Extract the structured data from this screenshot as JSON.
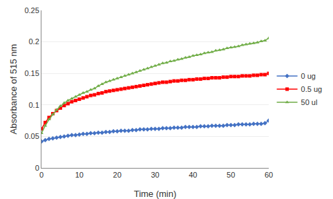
{
  "chart_data": {
    "type": "line",
    "xlabel": "Time (min)",
    "ylabel": "Absorbance of 515 nm",
    "x": [
      0,
      1,
      2,
      3,
      4,
      5,
      6,
      7,
      8,
      9,
      10,
      11,
      12,
      13,
      14,
      15,
      16,
      17,
      18,
      19,
      20,
      21,
      22,
      23,
      24,
      25,
      26,
      27,
      28,
      29,
      30,
      31,
      32,
      33,
      34,
      35,
      36,
      37,
      38,
      39,
      40,
      41,
      42,
      43,
      44,
      45,
      46,
      47,
      48,
      49,
      50,
      51,
      52,
      53,
      54,
      55,
      56,
      57,
      58,
      59,
      60
    ],
    "xlim": [
      0,
      60
    ],
    "xticks": [
      0,
      10,
      20,
      30,
      40,
      50,
      60
    ],
    "ylim": [
      0,
      0.25
    ],
    "yticks": [
      0,
      0.05,
      0.1,
      0.15,
      0.2,
      0.25
    ],
    "grid": "y",
    "legend": "right",
    "series": [
      {
        "name": "0 ug",
        "color": "#4472C4",
        "marker": "diamond",
        "values": [
          0.042,
          0.044,
          0.046,
          0.047,
          0.048,
          0.049,
          0.05,
          0.051,
          0.052,
          0.052,
          0.053,
          0.054,
          0.054,
          0.055,
          0.055,
          0.056,
          0.056,
          0.057,
          0.057,
          0.058,
          0.058,
          0.059,
          0.059,
          0.059,
          0.06,
          0.06,
          0.061,
          0.061,
          0.061,
          0.062,
          0.062,
          0.062,
          0.063,
          0.063,
          0.063,
          0.064,
          0.064,
          0.064,
          0.065,
          0.065,
          0.065,
          0.065,
          0.066,
          0.066,
          0.066,
          0.067,
          0.067,
          0.067,
          0.067,
          0.068,
          0.068,
          0.068,
          0.069,
          0.069,
          0.069,
          0.069,
          0.07,
          0.07,
          0.07,
          0.071,
          0.075
        ]
      },
      {
        "name": "0.5 ug",
        "color": "#FF0000",
        "marker": "square",
        "values": [
          0.062,
          0.072,
          0.08,
          0.086,
          0.091,
          0.095,
          0.099,
          0.102,
          0.105,
          0.107,
          0.109,
          0.111,
          0.113,
          0.115,
          0.116,
          0.118,
          0.119,
          0.121,
          0.122,
          0.123,
          0.124,
          0.125,
          0.126,
          0.127,
          0.128,
          0.129,
          0.13,
          0.131,
          0.132,
          0.133,
          0.134,
          0.135,
          0.136,
          0.136,
          0.137,
          0.138,
          0.138,
          0.139,
          0.139,
          0.14,
          0.14,
          0.141,
          0.141,
          0.142,
          0.142,
          0.143,
          0.143,
          0.143,
          0.144,
          0.144,
          0.145,
          0.145,
          0.145,
          0.146,
          0.146,
          0.146,
          0.147,
          0.147,
          0.148,
          0.148,
          0.15
        ]
      },
      {
        "name": "50 ul",
        "color": "#70AD47",
        "marker": "triangle-up",
        "values": [
          0.055,
          0.067,
          0.077,
          0.085,
          0.092,
          0.098,
          0.103,
          0.107,
          0.11,
          0.113,
          0.116,
          0.119,
          0.121,
          0.124,
          0.126,
          0.13,
          0.133,
          0.136,
          0.138,
          0.14,
          0.142,
          0.144,
          0.146,
          0.148,
          0.15,
          0.152,
          0.154,
          0.156,
          0.158,
          0.16,
          0.162,
          0.164,
          0.166,
          0.167,
          0.169,
          0.17,
          0.172,
          0.173,
          0.175,
          0.176,
          0.178,
          0.179,
          0.18,
          0.182,
          0.183,
          0.184,
          0.186,
          0.187,
          0.188,
          0.19,
          0.191,
          0.192,
          0.193,
          0.195,
          0.196,
          0.197,
          0.198,
          0.199,
          0.201,
          0.202,
          0.206
        ]
      }
    ]
  }
}
